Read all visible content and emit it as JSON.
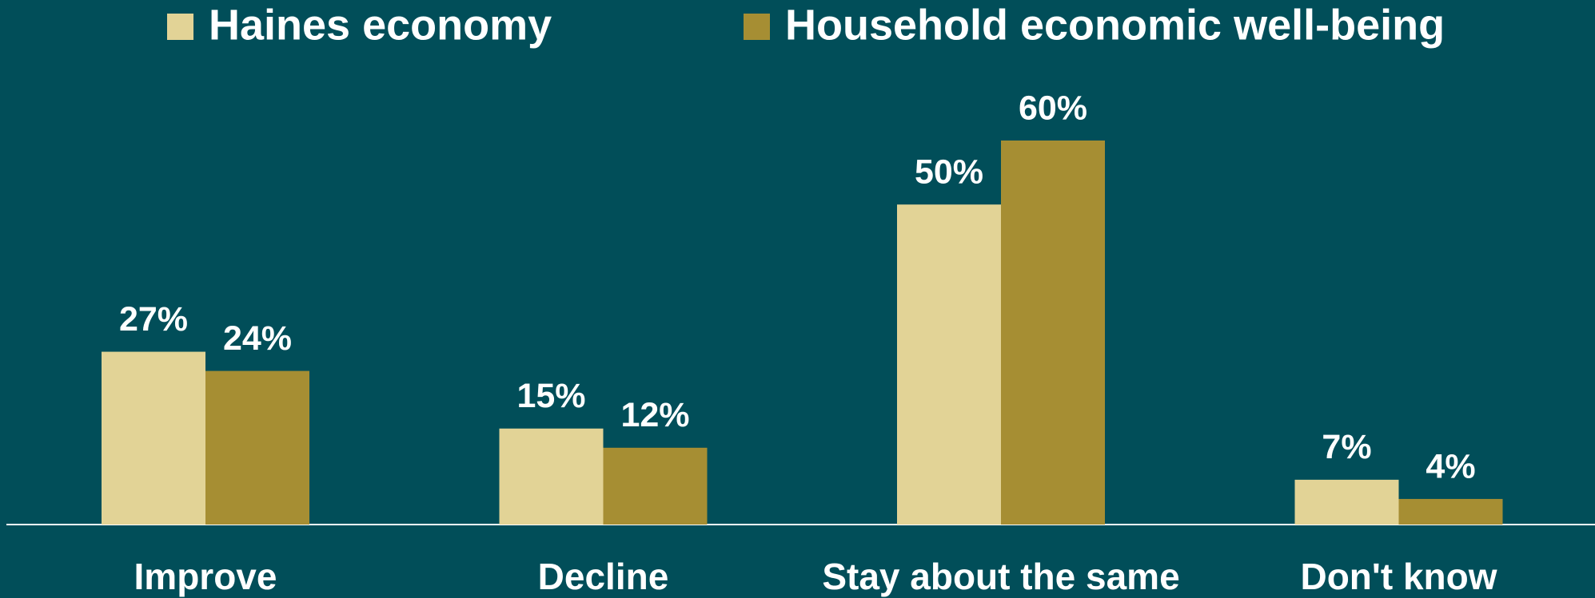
{
  "chart_data": {
    "type": "bar",
    "categories": [
      "Improve",
      "Decline",
      "Stay about the same",
      "Don't know"
    ],
    "series": [
      {
        "name": "Haines economy",
        "color": "#e2d396",
        "values": [
          27,
          15,
          50,
          7
        ],
        "value_labels": [
          "27%",
          "15%",
          "50%",
          "7%"
        ]
      },
      {
        "name": "Household economic well-being",
        "color": "#a68e33",
        "values": [
          24,
          12,
          60,
          4
        ],
        "value_labels": [
          "24%",
          "12%",
          "60%",
          "4%"
        ]
      }
    ],
    "legend": "top"
  }
}
